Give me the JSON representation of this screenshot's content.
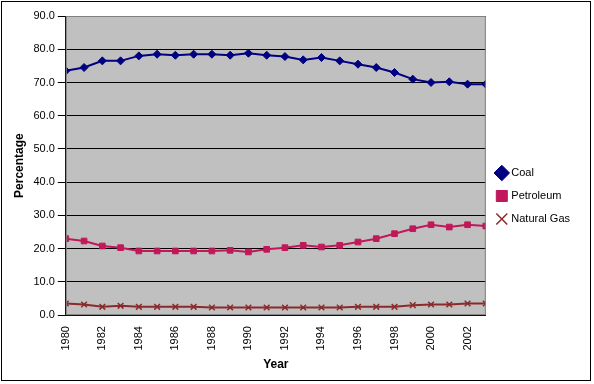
{
  "chart_data": {
    "type": "line",
    "x_label": "Year",
    "y_label": "Percentage",
    "categories": [
      "1980",
      null,
      "1982",
      null,
      "1984",
      null,
      "1986",
      null,
      "1988",
      null,
      "1990",
      null,
      "1992",
      null,
      "1994",
      null,
      "1996",
      null,
      "1998",
      null,
      "2000",
      null,
      "2002",
      null
    ],
    "series": [
      {
        "name": "Coal",
        "color": "#000080",
        "marker": "diamond",
        "line_style": "solid",
        "values": [
          73.5,
          74.5,
          76.5,
          76.5,
          78.0,
          78.5,
          78.2,
          78.5,
          78.5,
          78.2,
          78.8,
          78.2,
          77.8,
          76.8,
          77.5,
          76.5,
          75.5,
          74.5,
          73.0,
          71.0,
          70.0,
          70.2,
          69.5,
          69.5
        ]
      },
      {
        "name": "Petroleum",
        "color": "#c0185a",
        "marker": "square",
        "line_style": "solid",
        "values": [
          23.0,
          22.3,
          20.8,
          20.3,
          19.3,
          19.3,
          19.3,
          19.3,
          19.3,
          19.5,
          19.0,
          19.8,
          20.3,
          21.0,
          20.5,
          21.0,
          22.0,
          23.0,
          24.5,
          26.0,
          27.2,
          26.5,
          27.2,
          26.8
        ]
      },
      {
        "name": "Natural Gas",
        "color": "#8b2a2a",
        "marker": "x",
        "line_style": "solid",
        "values": [
          3.5,
          3.2,
          2.5,
          2.8,
          2.5,
          2.5,
          2.5,
          2.5,
          2.3,
          2.3,
          2.3,
          2.3,
          2.3,
          2.3,
          2.3,
          2.3,
          2.5,
          2.5,
          2.5,
          3.0,
          3.2,
          3.2,
          3.5,
          3.5
        ]
      }
    ],
    "ylim": [
      0,
      90
    ],
    "yticks": [
      {
        "value": 0,
        "label": "0.0"
      },
      {
        "value": 10,
        "label": "10.0"
      },
      {
        "value": 20,
        "label": "20.0"
      },
      {
        "value": 30,
        "label": "30.0"
      },
      {
        "value": 40,
        "label": "40.0"
      },
      {
        "value": 50,
        "label": "50.0"
      },
      {
        "value": 60,
        "label": "60.0"
      },
      {
        "value": 70,
        "label": "70.0"
      },
      {
        "value": 80,
        "label": "80.0"
      },
      {
        "value": 90,
        "label": "90.0"
      }
    ],
    "grid": true,
    "legend": "right"
  }
}
